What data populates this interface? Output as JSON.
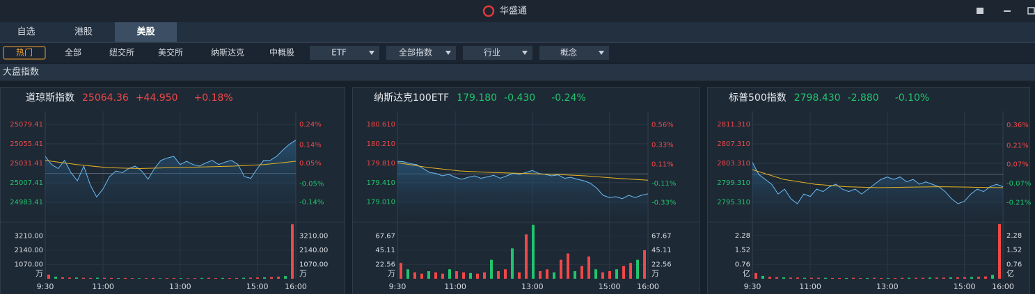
{
  "window": {
    "title": "华盛通"
  },
  "tabs": [
    "自选",
    "港股",
    "美股"
  ],
  "active_tab": 2,
  "filters": [
    "热门",
    "全部",
    "纽交所",
    "美交所",
    "纳斯达克",
    "中概股"
  ],
  "dropdowns": [
    "ETF",
    "全部指数",
    "行业",
    "概念"
  ],
  "section": "大盘指数",
  "panels": [
    {
      "name": "道琼斯指数",
      "price": "25064.36",
      "change": "+44.950",
      "change_pct": "+0.18%",
      "direction": "up",
      "price_ticks": [
        {
          "value": 25079.41,
          "label": "25079.41"
        },
        {
          "value": 25055.41,
          "label": "25055.41"
        },
        {
          "value": 25031.41,
          "label": "25031.41"
        },
        {
          "value": 25007.41,
          "label": "25007.41"
        },
        {
          "value": 24983.41,
          "label": "24983.41"
        }
      ],
      "pct_ticks": [
        {
          "value": 0.24,
          "label": "0.24%"
        },
        {
          "value": 0.14,
          "label": "0.14%"
        },
        {
          "value": 0.05,
          "label": "0.05%"
        },
        {
          "value": -0.05,
          "label": "-0.05%"
        },
        {
          "value": -0.14,
          "label": "-0.14%"
        }
      ],
      "ylim": [
        24960.3,
        25095.7
      ],
      "y2lim": [
        -0.232,
        0.304
      ],
      "volume_ticks": [
        {
          "value": 3210,
          "label": "3210.00"
        },
        {
          "value": 2140,
          "label": "2140.00"
        },
        {
          "value": 1070,
          "label": "1070.00"
        }
      ],
      "volume_ylim": [
        0,
        4230
      ],
      "volume_unit": "万",
      "time_ticks": [
        {
          "value": 0,
          "label": "9:30"
        },
        {
          "value": 90,
          "label": "11:00"
        },
        {
          "value": 210,
          "label": "13:00"
        },
        {
          "value": 330,
          "label": "15:00"
        },
        {
          "value": 390,
          "label": "16:00"
        }
      ],
      "xlim": [
        0,
        390
      ],
      "prices": [
        25040,
        25030,
        25025,
        25035,
        25020,
        25010,
        25028,
        25005,
        24990,
        25000,
        25015,
        25022,
        25020,
        25025,
        25028,
        25022,
        25012,
        25025,
        25035,
        25038,
        25040,
        25030,
        25034,
        25030,
        25028,
        25032,
        25035,
        25030,
        25033,
        25035,
        25030,
        25015,
        25013,
        25025,
        25035,
        25035,
        25040,
        25048,
        25055,
        25060
      ],
      "average": [
        25035,
        25030,
        25026,
        25025,
        25026,
        25027,
        25028,
        25030,
        25034
      ],
      "volume": [
        300,
        150,
        100,
        80,
        90,
        70,
        60,
        80,
        70,
        60,
        50,
        60,
        50,
        40,
        50,
        60,
        40,
        50,
        60,
        50,
        40,
        50,
        60,
        70,
        50,
        60,
        50,
        60,
        70,
        80,
        90,
        100,
        120,
        150,
        200,
        4100
      ]
    },
    {
      "name": "纳斯达克100ETF",
      "price": "179.180",
      "change": "-0.430",
      "change_pct": "-0.24%",
      "direction": "down",
      "price_ticks": [
        {
          "value": 180.61,
          "label": "180.610"
        },
        {
          "value": 180.21,
          "label": "180.210"
        },
        {
          "value": 179.81,
          "label": "179.810"
        },
        {
          "value": 179.41,
          "label": "179.410"
        },
        {
          "value": 179.01,
          "label": "179.010"
        }
      ],
      "pct_ticks": [
        {
          "value": 0.56,
          "label": "0.56%"
        },
        {
          "value": 0.33,
          "label": "0.33%"
        },
        {
          "value": 0.11,
          "label": "0.11%"
        },
        {
          "value": -0.11,
          "label": "-0.11%"
        },
        {
          "value": -0.33,
          "label": "-0.33%"
        }
      ],
      "ylim": [
        178.62,
        180.88
      ],
      "y2lim": [
        -0.539,
        0.716
      ],
      "volume_ticks": [
        {
          "value": 67.67,
          "label": "67.67"
        },
        {
          "value": 45.11,
          "label": "45.11"
        },
        {
          "value": 22.56,
          "label": "22.56"
        }
      ],
      "volume_ylim": [
        0,
        89
      ],
      "volume_unit": "万",
      "time_ticks": [
        {
          "value": 0,
          "label": "9:30"
        },
        {
          "value": 90,
          "label": "11:00"
        },
        {
          "value": 210,
          "label": "13:00"
        },
        {
          "value": 330,
          "label": "15:00"
        },
        {
          "value": 390,
          "label": "16:00"
        }
      ],
      "xlim": [
        0,
        390
      ],
      "prices": [
        179.85,
        179.84,
        179.8,
        179.78,
        179.7,
        179.62,
        179.6,
        179.55,
        179.58,
        179.52,
        179.48,
        179.52,
        179.55,
        179.5,
        179.53,
        179.56,
        179.5,
        179.55,
        179.6,
        179.58,
        179.62,
        179.66,
        179.6,
        179.58,
        179.55,
        179.57,
        179.5,
        179.52,
        179.48,
        179.45,
        179.4,
        179.3,
        179.15,
        179.1,
        179.12,
        179.08,
        179.15,
        179.1,
        179.15,
        179.18
      ],
      "average": [
        179.82,
        179.72,
        179.65,
        179.62,
        179.6,
        179.58,
        179.55,
        179.5,
        179.46
      ],
      "volume": [
        25,
        15,
        10,
        8,
        12,
        10,
        8,
        15,
        12,
        10,
        9,
        8,
        10,
        30,
        12,
        15,
        48,
        10,
        70,
        85,
        12,
        15,
        10,
        30,
        40,
        12,
        20,
        35,
        15,
        10,
        12,
        15,
        20,
        25,
        30,
        45
      ]
    },
    {
      "name": "标普500指数",
      "price": "2798.430",
      "change": "-2.880",
      "change_pct": "-0.10%",
      "direction": "down",
      "price_ticks": [
        {
          "value": 2811.31,
          "label": "2811.310"
        },
        {
          "value": 2807.31,
          "label": "2807.310"
        },
        {
          "value": 2803.31,
          "label": "2803.310"
        },
        {
          "value": 2799.31,
          "label": "2799.310"
        },
        {
          "value": 2795.31,
          "label": "2795.310"
        }
      ],
      "pct_ticks": [
        {
          "value": 0.36,
          "label": "0.36%"
        },
        {
          "value": 0.21,
          "label": "0.21%"
        },
        {
          "value": 0.07,
          "label": "0.07%"
        },
        {
          "value": -0.07,
          "label": "-0.07%"
        },
        {
          "value": -0.21,
          "label": "-0.21%"
        }
      ],
      "ylim": [
        2791.45,
        2814.02
      ],
      "y2lim": [
        -0.345,
        0.462
      ],
      "volume_ticks": [
        {
          "value": 2.28,
          "label": "2.28"
        },
        {
          "value": 1.52,
          "label": "1.52"
        },
        {
          "value": 0.76,
          "label": "0.76"
        }
      ],
      "volume_ylim": [
        0,
        2.98
      ],
      "volume_unit": "亿",
      "time_ticks": [
        {
          "value": 0,
          "label": "9:30"
        },
        {
          "value": 90,
          "label": "11:00"
        },
        {
          "value": 210,
          "label": "13:00"
        },
        {
          "value": 330,
          "label": "15:00"
        },
        {
          "value": 390,
          "label": "16:00"
        }
      ],
      "xlim": [
        0,
        390
      ],
      "prices": [
        2803.5,
        2801,
        2800,
        2799,
        2797,
        2798,
        2796,
        2795,
        2797,
        2796.5,
        2798,
        2797.5,
        2798.5,
        2799,
        2798,
        2797.5,
        2798,
        2797,
        2798,
        2799,
        2800,
        2800.5,
        2800,
        2800.5,
        2799.5,
        2800,
        2799,
        2799.5,
        2799,
        2798.5,
        2797.5,
        2796,
        2795,
        2795.5,
        2797,
        2798,
        2797.5,
        2798.5,
        2799,
        2798.5
      ],
      "average": [
        2802,
        2800,
        2799,
        2798.5,
        2798.3,
        2798.4,
        2798.5,
        2798.4,
        2798.3
      ],
      "volume": [
        0.3,
        0.15,
        0.1,
        0.08,
        0.07,
        0.06,
        0.06,
        0.05,
        0.05,
        0.05,
        0.05,
        0.04,
        0.04,
        0.04,
        0.05,
        0.04,
        0.04,
        0.05,
        0.04,
        0.04,
        0.04,
        0.05,
        0.05,
        0.05,
        0.05,
        0.06,
        0.06,
        0.06,
        0.07,
        0.07,
        0.08,
        0.09,
        0.1,
        0.12,
        0.2,
        2.9
      ]
    }
  ]
}
